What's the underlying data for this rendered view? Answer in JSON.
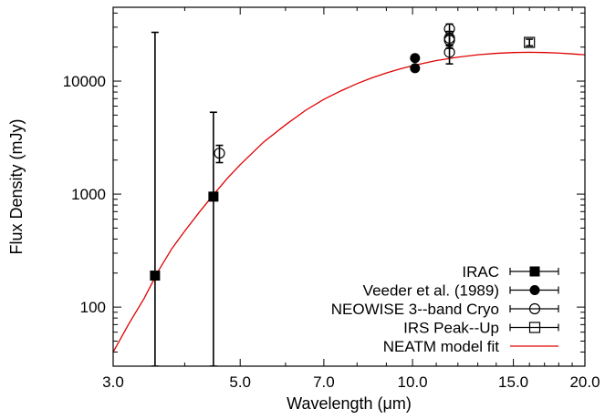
{
  "chart_data": {
    "type": "scatter",
    "xlabel": "Wavelength (μm)",
    "ylabel": "Flux Density (mJy)",
    "x_scale": "log",
    "y_scale": "log",
    "xlim": [
      3.0,
      20.0
    ],
    "ylim": [
      30,
      45000
    ],
    "x_ticks": [
      {
        "value": 3.0,
        "label": "3.0"
      },
      {
        "value": 5.0,
        "label": "5.0"
      },
      {
        "value": 7.0,
        "label": "7.0"
      },
      {
        "value": 10.0,
        "label": "10.0"
      },
      {
        "value": 15.0,
        "label": "15.0"
      },
      {
        "value": 20.0,
        "label": "20.0"
      }
    ],
    "y_ticks": [
      {
        "value": 100,
        "label": "100"
      },
      {
        "value": 1000,
        "label": "1000"
      },
      {
        "value": 10000,
        "label": "10000"
      }
    ],
    "legend_position": "bottom-right",
    "series": [
      {
        "name": "IRAC",
        "marker": "filled-square",
        "color": "#000000",
        "points": [
          {
            "x": 3.55,
            "y": 190,
            "y_low": 30,
            "y_high": 27000
          },
          {
            "x": 4.49,
            "y": 950,
            "y_low": 30,
            "y_high": 5300
          }
        ]
      },
      {
        "name": "Veeder et al. (1989)",
        "marker": "filled-circle",
        "color": "#000000",
        "points": [
          {
            "x": 10.1,
            "y": 16000
          },
          {
            "x": 10.1,
            "y": 13000
          }
        ]
      },
      {
        "name": "NEOWISE 3--band Cryo",
        "marker": "open-circle",
        "color": "#000000",
        "points": [
          {
            "x": 4.6,
            "y": 2300,
            "y_low": 1900,
            "y_high": 2700
          },
          {
            "x": 11.6,
            "y": 29000,
            "y_low": 25500,
            "y_high": 32000
          },
          {
            "x": 11.6,
            "y": 24000,
            "y_low": 20500,
            "y_high": 27500
          },
          {
            "x": 11.6,
            "y": 23000,
            "y_low": 19500,
            "y_high": 26500
          },
          {
            "x": 11.6,
            "y": 18000,
            "y_low": 14200,
            "y_high": 21000
          }
        ]
      },
      {
        "name": "IRS Peak--Up",
        "marker": "open-square",
        "color": "#000000",
        "points": [
          {
            "x": 16.0,
            "y": 22000,
            "y_low": 20500,
            "y_high": 23500
          }
        ]
      },
      {
        "name": "NEATM model fit",
        "marker": "line",
        "color": "#e00000",
        "curve": [
          {
            "x": 3.0,
            "y": 40
          },
          {
            "x": 3.2,
            "y": 72
          },
          {
            "x": 3.4,
            "y": 120
          },
          {
            "x": 3.6,
            "y": 210
          },
          {
            "x": 3.8,
            "y": 330
          },
          {
            "x": 4.0,
            "y": 470
          },
          {
            "x": 4.25,
            "y": 700
          },
          {
            "x": 4.5,
            "y": 1000
          },
          {
            "x": 4.75,
            "y": 1380
          },
          {
            "x": 5.0,
            "y": 1820
          },
          {
            "x": 5.5,
            "y": 2900
          },
          {
            "x": 6.0,
            "y": 4100
          },
          {
            "x": 6.5,
            "y": 5500
          },
          {
            "x": 7.0,
            "y": 6900
          },
          {
            "x": 7.5,
            "y": 8200
          },
          {
            "x": 8.0,
            "y": 9500
          },
          {
            "x": 8.5,
            "y": 10700
          },
          {
            "x": 9.0,
            "y": 11800
          },
          {
            "x": 9.5,
            "y": 12800
          },
          {
            "x": 10.0,
            "y": 13700
          },
          {
            "x": 11.0,
            "y": 15200
          },
          {
            "x": 12.0,
            "y": 16300
          },
          {
            "x": 13.0,
            "y": 17100
          },
          {
            "x": 14.0,
            "y": 17600
          },
          {
            "x": 15.0,
            "y": 17900
          },
          {
            "x": 16.0,
            "y": 18000
          },
          {
            "x": 17.0,
            "y": 17900
          },
          {
            "x": 18.0,
            "y": 17700
          },
          {
            "x": 19.0,
            "y": 17400
          },
          {
            "x": 20.0,
            "y": 17100
          }
        ]
      }
    ]
  }
}
